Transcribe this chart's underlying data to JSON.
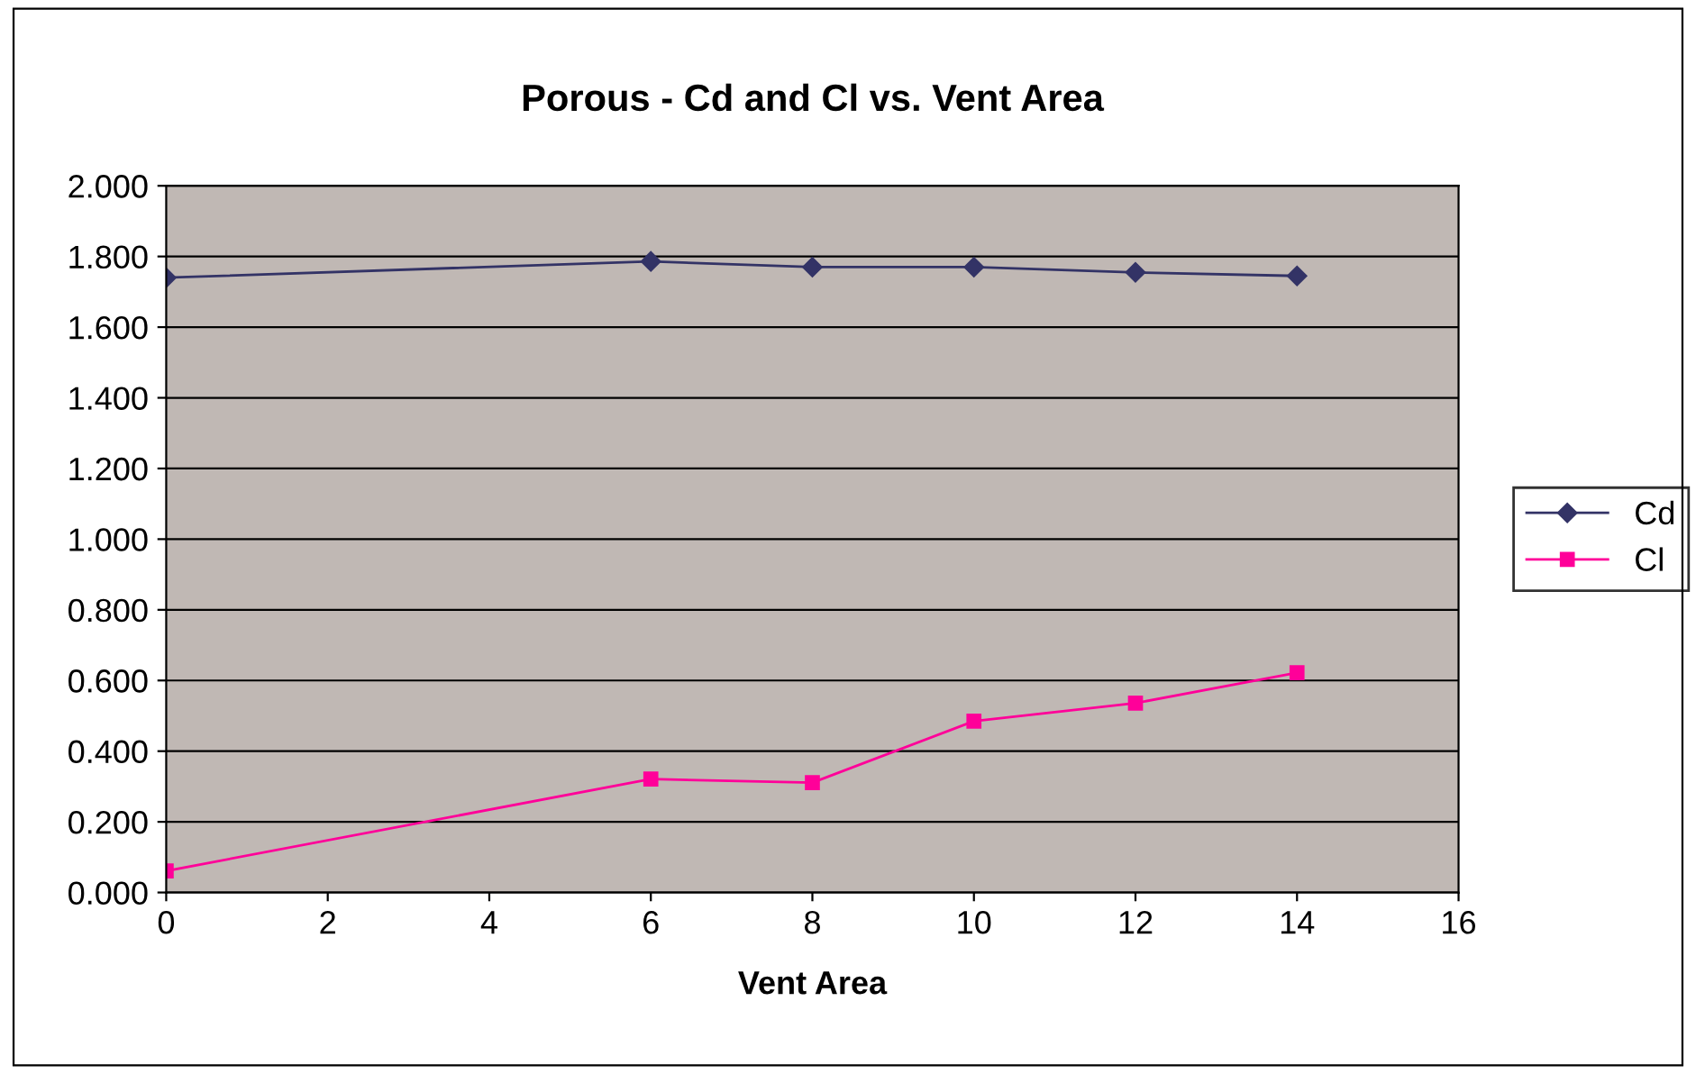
{
  "chart_data": {
    "type": "line",
    "title": "Porous - Cd and Cl vs. Vent Area",
    "xlabel": "Vent Area",
    "x": [
      0,
      6,
      8,
      10,
      12,
      14
    ],
    "series": [
      {
        "name": "Cd",
        "color": "#333366",
        "marker": "diamond",
        "values": [
          1.74,
          1.786,
          1.77,
          1.77,
          1.755,
          1.745
        ]
      },
      {
        "name": "Cl",
        "color": "#ff0099",
        "marker": "square",
        "values": [
          0.061,
          0.321,
          0.311,
          0.485,
          0.536,
          0.622
        ]
      }
    ],
    "xlim": [
      0,
      16
    ],
    "xticks": [
      0,
      2,
      4,
      6,
      8,
      10,
      12,
      14,
      16
    ],
    "ylim": [
      0,
      2
    ],
    "yticks": [
      {
        "value": 0,
        "label": "0.000"
      },
      {
        "value": 0.2,
        "label": "0.200"
      },
      {
        "value": 0.4,
        "label": "0.400"
      },
      {
        "value": 0.6,
        "label": "0.600"
      },
      {
        "value": 0.8,
        "label": "0.800"
      },
      {
        "value": 1.0,
        "label": "1.000"
      },
      {
        "value": 1.2,
        "label": "1.200"
      },
      {
        "value": 1.4,
        "label": "1.400"
      },
      {
        "value": 1.6,
        "label": "1.600"
      },
      {
        "value": 1.8,
        "label": "1.800"
      },
      {
        "value": 2.0,
        "label": "2.000"
      }
    ],
    "grid": "y",
    "legend": "right",
    "line_style": "solid"
  }
}
